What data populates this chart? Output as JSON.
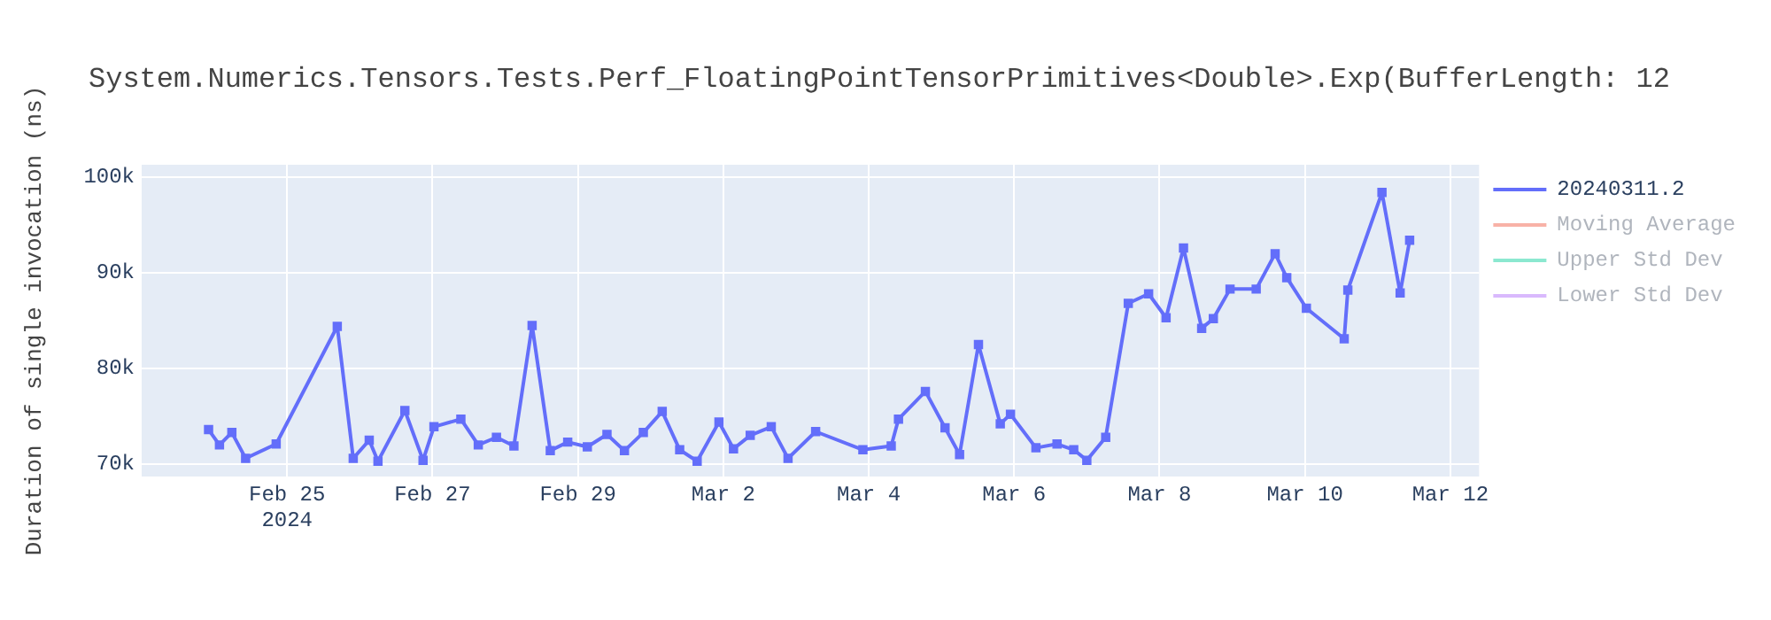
{
  "chart_data": {
    "type": "line",
    "title": "System.Numerics.Tensors.Tests.Perf_FloatingPointTensorPrimitives<Double>.Exp(BufferLength: 12",
    "ylabel": "Duration of single invocation (ns)",
    "x": [
      "2024-02-23T22:05",
      "2024-02-24T01:41",
      "2024-02-24T05:46",
      "2024-02-24T10:19",
      "2024-02-24T20:24",
      "2024-02-25T16:34",
      "2024-02-25T21:50",
      "2024-02-26T03:07",
      "2024-02-26T06:00",
      "2024-02-26T14:53",
      "2024-02-26T20:53",
      "2024-02-27T00:29",
      "2024-02-27T09:22",
      "2024-02-27T15:07",
      "2024-02-27T21:07",
      "2024-02-28T02:53",
      "2024-02-28T08:53",
      "2024-02-28T14:53",
      "2024-02-28T20:38",
      "2024-02-29T03:07",
      "2024-02-29T09:36",
      "2024-02-29T15:22",
      "2024-02-29T21:36",
      "2024-03-01T03:50",
      "2024-03-01T09:36",
      "2024-03-01T15:22",
      "2024-03-01T22:34",
      "2024-03-02T03:22",
      "2024-03-02T08:53",
      "2024-03-02T15:50",
      "2024-03-02T21:22",
      "2024-03-03T06:29",
      "2024-03-03T22:05",
      "2024-03-04T07:26",
      "2024-03-04T09:50",
      "2024-03-04T18:43",
      "2024-03-05T01:12",
      "2024-03-05T06:00",
      "2024-03-05T12:14",
      "2024-03-05T19:26",
      "2024-03-05T22:48",
      "2024-03-06T07:12",
      "2024-03-06T14:10",
      "2024-03-06T19:41",
      "2024-03-07T00:00",
      "2024-03-07T06:14",
      "2024-03-07T13:41",
      "2024-03-07T20:24",
      "2024-03-08T02:10",
      "2024-03-08T07:55",
      "2024-03-08T13:55",
      "2024-03-08T17:46",
      "2024-03-08T23:17",
      "2024-03-09T07:55",
      "2024-03-09T14:10",
      "2024-03-09T18:00",
      "2024-03-10T00:29",
      "2024-03-10T12:58",
      "2024-03-10T14:10",
      "2024-03-11T01:26",
      "2024-03-11T07:26",
      "2024-03-11T10:34"
    ],
    "series": [
      {
        "name": "20240311.2",
        "color": "#636efa",
        "values": [
          73600,
          72000,
          73300,
          70600,
          72100,
          84400,
          70600,
          72500,
          70300,
          75600,
          70400,
          73900,
          74700,
          72000,
          72800,
          71900,
          84500,
          71400,
          72300,
          71800,
          73100,
          71400,
          73300,
          75500,
          71500,
          70300,
          74400,
          71600,
          73000,
          73900,
          70600,
          73400,
          71500,
          71900,
          74700,
          77600,
          73800,
          71000,
          82500,
          74200,
          75200,
          71700,
          72100,
          71500,
          70400,
          72800,
          86800,
          87800,
          85300,
          92600,
          84200,
          85200,
          88300,
          88300,
          92000,
          89500,
          86300,
          83100,
          88200,
          98400,
          87900,
          93400
        ]
      },
      {
        "name": "Moving Average",
        "color": "#ef553b",
        "values": [
          null,
          null,
          null,
          null,
          null,
          null,
          null,
          null,
          null,
          null,
          null,
          null,
          null,
          null,
          null,
          null,
          null,
          null,
          null,
          null,
          null,
          null,
          null,
          null,
          null,
          null,
          null,
          null,
          null,
          null,
          null,
          null,
          null,
          null,
          null,
          null,
          null,
          null,
          null,
          null,
          null,
          null,
          null,
          null,
          null,
          null,
          null,
          null,
          null,
          null,
          null,
          null,
          null,
          null,
          null,
          null,
          null,
          null,
          null,
          null,
          null,
          null
        ]
      },
      {
        "name": "Upper Std Dev",
        "color": "#00cc96",
        "values": [
          null,
          null,
          null,
          null,
          null,
          null,
          null,
          null,
          null,
          null,
          null,
          null,
          null,
          null,
          null,
          null,
          null,
          null,
          null,
          null,
          null,
          null,
          null,
          null,
          null,
          null,
          null,
          null,
          null,
          null,
          null,
          null,
          null,
          null,
          null,
          null,
          null,
          null,
          null,
          null,
          null,
          null,
          null,
          null,
          null,
          null,
          null,
          null,
          null,
          null,
          null,
          null,
          null,
          null,
          null,
          null,
          null,
          null,
          null,
          null,
          null,
          null
        ]
      },
      {
        "name": "Lower Std Dev",
        "color": "#ab63fa",
        "values": [
          null,
          null,
          null,
          null,
          null,
          null,
          null,
          null,
          null,
          null,
          null,
          null,
          null,
          null,
          null,
          null,
          null,
          null,
          null,
          null,
          null,
          null,
          null,
          null,
          null,
          null,
          null,
          null,
          null,
          null,
          null,
          null,
          null,
          null,
          null,
          null,
          null,
          null,
          null,
          null,
          null,
          null,
          null,
          null,
          null,
          null,
          null,
          null,
          null,
          null,
          null,
          null,
          null,
          null,
          null,
          null,
          null,
          null,
          null,
          null,
          null,
          null
        ]
      }
    ],
    "xlim": [
      "2024-02-23T00:00",
      "2024-03-12T09:30"
    ],
    "xticks": [
      {
        "value": "2024-02-25",
        "label": "Feb 25\n2024"
      },
      {
        "value": "2024-02-27",
        "label": "Feb 27"
      },
      {
        "value": "2024-02-29",
        "label": "Feb 29"
      },
      {
        "value": "2024-03-02",
        "label": "Mar 2"
      },
      {
        "value": "2024-03-04",
        "label": "Mar 4"
      },
      {
        "value": "2024-03-06",
        "label": "Mar 6"
      },
      {
        "value": "2024-03-08",
        "label": "Mar 8"
      },
      {
        "value": "2024-03-10",
        "label": "Mar 10"
      },
      {
        "value": "2024-03-12",
        "label": "Mar 12"
      }
    ],
    "ylim": [
      68700,
      101300
    ],
    "yticks": [
      {
        "value": 70000,
        "label": "70k"
      },
      {
        "value": 80000,
        "label": "80k"
      },
      {
        "value": 90000,
        "label": "90k"
      },
      {
        "value": 100000,
        "label": "100k"
      }
    ],
    "grid": true,
    "legend": "top right",
    "marker": "square",
    "line_style": "solid"
  }
}
